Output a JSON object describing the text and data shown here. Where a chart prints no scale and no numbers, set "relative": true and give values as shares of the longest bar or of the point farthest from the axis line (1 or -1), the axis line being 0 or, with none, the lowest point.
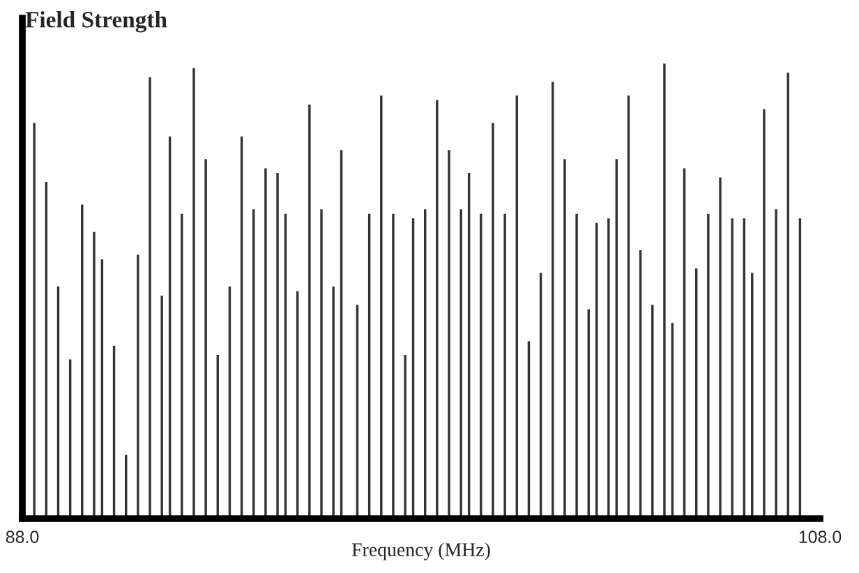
{
  "chart_data": {
    "type": "bar",
    "title": "Field Strength",
    "xlabel": "Frequency (MHz)",
    "relative": true,
    "color": "#333333",
    "xlim": [
      88,
      108
    ],
    "xticks": [
      {
        "value": 88,
        "label": "88.0"
      },
      {
        "value": 108,
        "label": "108.0"
      }
    ],
    "grid": false,
    "legend": false,
    "x": [
      88.3,
      88.6,
      88.9,
      89.2,
      89.5,
      89.8,
      90.0,
      90.3,
      90.6,
      90.9,
      91.2,
      91.5,
      91.7,
      92.0,
      92.3,
      92.6,
      92.9,
      93.2,
      93.5,
      93.8,
      94.1,
      94.4,
      94.6,
      94.9,
      95.2,
      95.5,
      95.8,
      96.0,
      96.4,
      96.7,
      97.0,
      97.3,
      97.6,
      97.8,
      98.1,
      98.4,
      98.7,
      99.0,
      99.2,
      99.5,
      99.8,
      100.1,
      100.4,
      100.7,
      101.0,
      101.3,
      101.6,
      101.9,
      102.2,
      102.4,
      102.7,
      102.9,
      103.2,
      103.5,
      103.8,
      104.1,
      104.3,
      104.6,
      104.9,
      105.2,
      105.5,
      105.8,
      106.1,
      106.3,
      106.6,
      106.9,
      107.2,
      107.5
    ],
    "values": [
      0.87,
      0.74,
      0.51,
      0.35,
      0.69,
      0.63,
      0.57,
      0.38,
      0.14,
      0.58,
      0.97,
      0.49,
      0.84,
      0.67,
      0.99,
      0.79,
      0.36,
      0.51,
      0.84,
      0.68,
      0.77,
      0.76,
      0.67,
      0.5,
      0.91,
      0.68,
      0.51,
      0.81,
      0.47,
      0.67,
      0.93,
      0.67,
      0.36,
      0.66,
      0.68,
      0.92,
      0.81,
      0.68,
      0.76,
      0.67,
      0.87,
      0.67,
      0.93,
      0.39,
      0.54,
      0.96,
      0.79,
      0.67,
      0.46,
      0.65,
      0.66,
      0.79,
      0.93,
      0.59,
      0.47,
      1,
      0.43,
      0.77,
      0.55,
      0.67,
      0.75,
      0.66,
      0.66,
      0.54,
      0.9,
      0.68,
      0.98,
      0.66
    ]
  }
}
